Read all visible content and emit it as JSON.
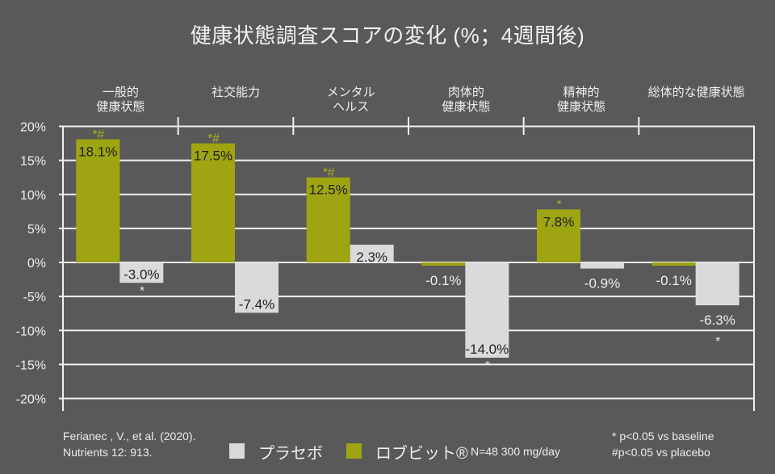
{
  "title": "健康状態調査スコアの変化 (%；4週間後)",
  "chart_data": {
    "type": "bar",
    "title": "健康状態調査スコアの変化 (%；4週間後)",
    "xlabel": "",
    "ylabel": "",
    "categories": [
      "一般的健康状態",
      "社交能力",
      "メンタルヘルス",
      "肉体的健康状態",
      "精神的健康状態",
      "総体的な健康状態"
    ],
    "category_lines": [
      [
        "一般的",
        "健康状態"
      ],
      [
        "社交能力"
      ],
      [
        "メンタル",
        "ヘルス"
      ],
      [
        "肉体的",
        "健康状態"
      ],
      [
        "精神的",
        "健康状態"
      ],
      [
        "総体的な健康状態"
      ]
    ],
    "ylim": [
      -20,
      20
    ],
    "ytick_step": 5,
    "yticks": [
      "20%",
      "15%",
      "10%",
      "5%",
      "0%",
      "-5%",
      "-10%",
      "-15%",
      "-20%"
    ],
    "grid": true,
    "legend_position": "bottom",
    "series": [
      {
        "name": "ロブビット®",
        "color": "#9ea412",
        "marker_color": "#a9b01c",
        "values": [
          18.1,
          17.5,
          12.5,
          -0.1,
          7.8,
          -0.1
        ],
        "labels": [
          "18.1%",
          "17.5%",
          "12.5%",
          "-0.1%",
          "7.8%",
          "-0.1%"
        ],
        "label_positions": [
          "inside",
          "inside",
          "inside",
          "outside",
          "inside",
          "outside"
        ],
        "markers": [
          "*#",
          "*#",
          "*#",
          "",
          "*",
          ""
        ]
      },
      {
        "name": "プラセボ",
        "color": "#dbdadb",
        "marker_color": "#e6e6e6",
        "values": [
          -3.0,
          -7.4,
          2.3,
          -14.0,
          -0.9,
          -6.3
        ],
        "labels": [
          "-3.0%",
          "-7.4%",
          "2.3%",
          "-14.0%",
          "-0.9%",
          "-6.3%"
        ],
        "label_positions": [
          "inside",
          "inside",
          "inside",
          "inside",
          "outside",
          "outside"
        ],
        "markers": [
          "*",
          "",
          "",
          "*",
          "",
          "*"
        ]
      }
    ]
  },
  "legend": {
    "dose_note": "N=48 300 mg/day"
  },
  "citation": [
    "Ferianec , V., et al. (2020).",
    "Nutrients 12: 913."
  ],
  "notes": [
    "* p<0.05 vs baseline",
    "#p<0.05 vs placebo"
  ]
}
